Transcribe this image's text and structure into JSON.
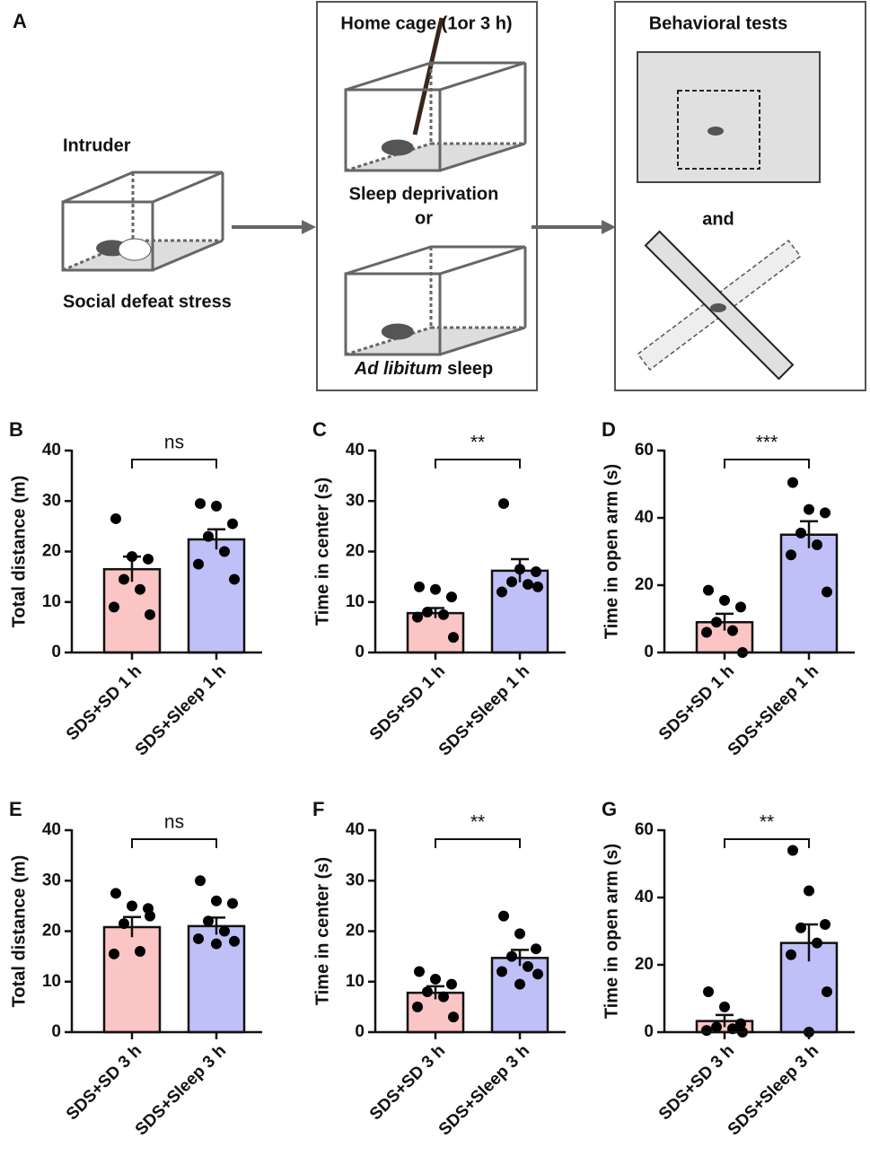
{
  "diagram": {
    "panel": "A",
    "intruder": "Intruder",
    "stress": "Social defeat stress",
    "home_cage": "Home cage (1or 3 h)",
    "deprivation": "Sleep deprivation",
    "or": "or",
    "ad_libitum": "Ad libitum",
    "sleep": "sleep",
    "tests": "Behavioral tests",
    "and": "and"
  },
  "chart_data": [
    {
      "type": "bar",
      "panel": "B",
      "ylabel": "Total distance (m)",
      "categories": [
        "SDS+SD 1 h",
        "SDS+Sleep 1 h"
      ],
      "colors": [
        "#fbc5c5",
        "#c0c0f8"
      ],
      "values": [
        16.5,
        22.4
      ],
      "errors": [
        2.5,
        2.0
      ],
      "points": [
        [
          26.5,
          19,
          18.5,
          14.5,
          12.5,
          9,
          7.5
        ],
        [
          29.5,
          29,
          25.5,
          23,
          20,
          17.5,
          14.5
        ]
      ],
      "ylim": [
        0,
        40
      ],
      "yticks": [
        0,
        10,
        20,
        30,
        40
      ],
      "significance": "ns"
    },
    {
      "type": "bar",
      "panel": "C",
      "ylabel": "Time in center (s)",
      "categories": [
        "SDS+SD 1 h",
        "SDS+Sleep 1 h"
      ],
      "colors": [
        "#fbc5c5",
        "#c0c0f8"
      ],
      "values": [
        7.8,
        16.2
      ],
      "errors": [
        1.0,
        2.3
      ],
      "points": [
        [
          13,
          12.5,
          11,
          8,
          7.5,
          7,
          3
        ],
        [
          29.5,
          16.5,
          16,
          14,
          13.5,
          12,
          13
        ]
      ],
      "ylim": [
        0,
        40
      ],
      "yticks": [
        0,
        10,
        20,
        30,
        40
      ],
      "significance": "**"
    },
    {
      "type": "bar",
      "panel": "D",
      "ylabel": "Time in open arm (s)",
      "categories": [
        "SDS+SD 1 h",
        "SDS+Sleep 1 h"
      ],
      "colors": [
        "#fbc5c5",
        "#c0c0f8"
      ],
      "values": [
        9,
        35
      ],
      "errors": [
        2.5,
        4
      ],
      "points": [
        [
          18.5,
          15.5,
          13.5,
          9,
          6.5,
          6,
          0
        ],
        [
          50.5,
          42.5,
          41.5,
          35.5,
          32,
          29,
          18
        ]
      ],
      "ylim": [
        0,
        60
      ],
      "yticks": [
        0,
        20,
        40,
        60
      ],
      "significance": "***"
    },
    {
      "type": "bar",
      "panel": "E",
      "ylabel": "Total distance (m)",
      "categories": [
        "SDS+SD 3 h",
        "SDS+Sleep 3 h"
      ],
      "colors": [
        "#fbc5c5",
        "#c0c0f8"
      ],
      "values": [
        20.8,
        21
      ],
      "errors": [
        2.0,
        1.7
      ],
      "points": [
        [
          27.5,
          25,
          24.5,
          21.5,
          16,
          15.5,
          23
        ],
        [
          30,
          26,
          25.5,
          22,
          20,
          18.5,
          18,
          17.5
        ]
      ],
      "ylim": [
        0,
        40
      ],
      "yticks": [
        0,
        10,
        20,
        30,
        40
      ],
      "significance": "ns"
    },
    {
      "type": "bar",
      "panel": "F",
      "ylabel": "Time in center (s)",
      "categories": [
        "SDS+SD 3 h",
        "SDS+Sleep 3 h"
      ],
      "colors": [
        "#fbc5c5",
        "#c0c0f8"
      ],
      "values": [
        7.8,
        14.7
      ],
      "errors": [
        1.3,
        1.6
      ],
      "points": [
        [
          12,
          10.5,
          9.5,
          8,
          7,
          5,
          3
        ],
        [
          23,
          19.5,
          16.5,
          15,
          13,
          12,
          11.5,
          9.5
        ]
      ],
      "ylim": [
        0,
        40
      ],
      "yticks": [
        0,
        10,
        20,
        30,
        40
      ],
      "significance": "**"
    },
    {
      "type": "bar",
      "panel": "G",
      "ylabel": "Time in open arm (s)",
      "categories": [
        "SDS+SD 3 h",
        "SDS+Sleep 3 h"
      ],
      "colors": [
        "#fbc5c5",
        "#c0c0f8"
      ],
      "values": [
        3.3,
        26.5
      ],
      "errors": [
        1.8,
        5.5
      ],
      "points": [
        [
          12,
          7.5,
          2.5,
          1.5,
          1,
          0.5,
          0
        ],
        [
          54,
          42,
          32,
          31,
          26.5,
          23,
          12,
          0
        ]
      ],
      "ylim": [
        0,
        60
      ],
      "yticks": [
        0,
        20,
        40,
        60
      ],
      "significance": "**"
    }
  ]
}
